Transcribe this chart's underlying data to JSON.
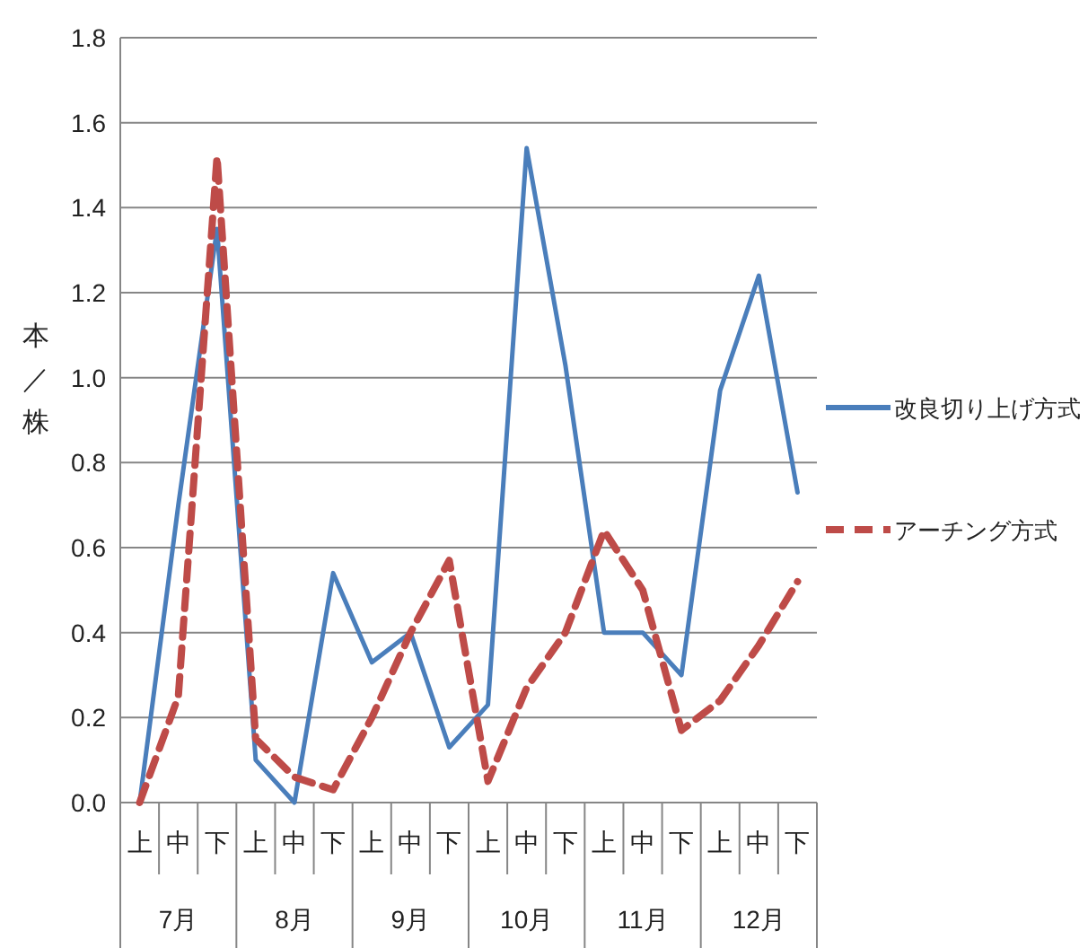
{
  "chart_data": {
    "type": "line",
    "ylabel": "本／株",
    "categories": [
      "上",
      "中",
      "下",
      "上",
      "中",
      "下",
      "上",
      "中",
      "下",
      "上",
      "中",
      "下",
      "上",
      "中",
      "下",
      "上",
      "中",
      "下"
    ],
    "annotations": [
      "7月",
      "8月",
      "9月",
      "10月",
      "11月",
      "12月"
    ],
    "series": [
      {
        "name": "改良切り上げ方式",
        "color": "#4a7ebb",
        "line_style": "solid",
        "values": [
          0.0,
          0.7,
          1.35,
          0.1,
          0.0,
          0.54,
          0.33,
          0.4,
          0.13,
          0.23,
          1.54,
          1.03,
          0.4,
          0.4,
          0.3,
          0.97,
          1.24,
          0.73
        ]
      },
      {
        "name": "アーチング方式",
        "color": "#be4b48",
        "line_style": "dashed",
        "values": [
          0.0,
          0.25,
          1.52,
          0.15,
          0.06,
          0.03,
          0.2,
          0.4,
          0.57,
          0.05,
          0.27,
          0.4,
          0.64,
          0.5,
          0.17,
          0.24,
          0.37,
          0.52
        ]
      }
    ],
    "ylim": [
      0,
      1.8
    ],
    "yticks": [
      {
        "value": 0,
        "label": "0.0"
      },
      0.2,
      0.4,
      0.6,
      0.8,
      {
        "value": 1,
        "label": "1.0"
      },
      1.2,
      1.4,
      1.6,
      1.8
    ],
    "grid": "y",
    "legend": "right",
    "marker": "none"
  }
}
